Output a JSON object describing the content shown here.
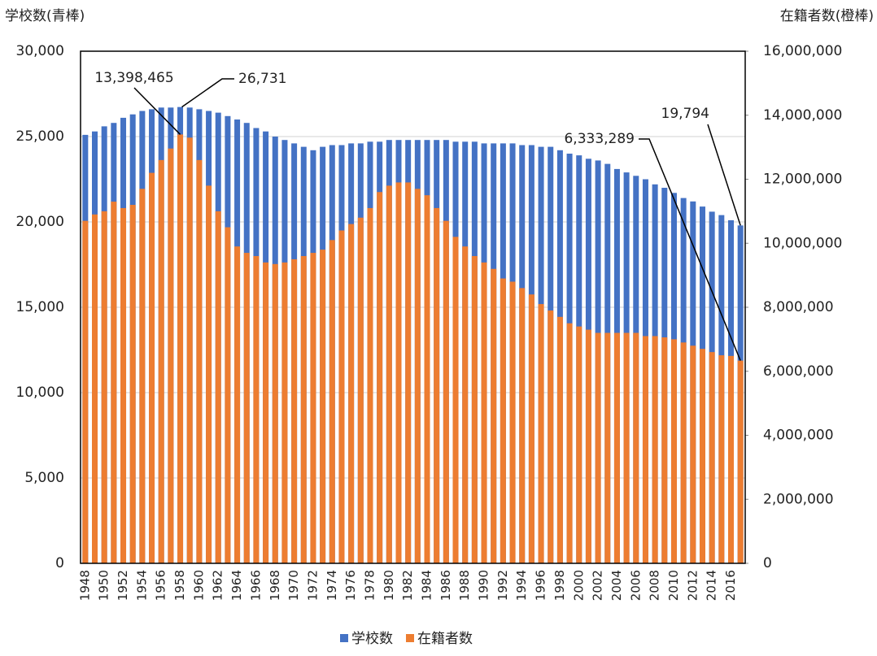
{
  "chart_data": {
    "type": "bar",
    "y_label": "学校数(青棒)",
    "y2_label": "在籍者数(橙棒)",
    "categories": [
      "1948",
      null,
      "1950",
      null,
      "1952",
      null,
      "1954",
      null,
      "1956",
      null,
      "1958",
      null,
      "1960",
      null,
      "1962",
      null,
      "1964",
      null,
      "1966",
      null,
      "1968",
      null,
      "1970",
      null,
      "1972",
      null,
      "1974",
      null,
      "1976",
      null,
      "1978",
      null,
      "1980",
      null,
      "1982",
      null,
      "1984",
      null,
      "1986",
      null,
      "1988",
      null,
      "1990",
      null,
      "1992",
      null,
      "1994",
      null,
      "1996",
      null,
      "1998",
      null,
      "2000",
      null,
      "2002",
      null,
      "2004",
      null,
      "2006",
      null,
      "2008",
      null,
      "2010",
      null,
      "2012",
      null,
      "2014",
      null,
      "2016",
      null
    ],
    "series": [
      {
        "name": "学校数",
        "color": "#4472c4",
        "values": [
          25100,
          25300,
          25600,
          25800,
          26100,
          26300,
          26500,
          26600,
          26700,
          26700,
          26731,
          26700,
          26600,
          26500,
          26400,
          26200,
          26000,
          25800,
          25500,
          25300,
          25000,
          24800,
          24600,
          24400,
          24200,
          24400,
          24500,
          24500,
          24600,
          24600,
          24700,
          24700,
          24800,
          24800,
          24800,
          24800,
          24800,
          24800,
          24800,
          24700,
          24700,
          24700,
          24600,
          24600,
          24600,
          24600,
          24500,
          24500,
          24400,
          24400,
          24200,
          24000,
          23900,
          23700,
          23600,
          23400,
          23100,
          22900,
          22700,
          22500,
          22200,
          22000,
          21700,
          21400,
          21200,
          20900,
          20600,
          20400,
          20100,
          19794
        ],
        "value_labels": [
          null,
          null,
          null,
          null,
          null,
          null,
          null,
          null,
          null,
          null,
          "26,731",
          null,
          null,
          null,
          null,
          null,
          null,
          null,
          null,
          null,
          null,
          null,
          null,
          null,
          null,
          null,
          null,
          null,
          null,
          null,
          null,
          null,
          null,
          null,
          null,
          null,
          null,
          null,
          null,
          null,
          null,
          null,
          null,
          null,
          null,
          null,
          null,
          null,
          null,
          null,
          null,
          null,
          null,
          null,
          null,
          null,
          null,
          null,
          null,
          null,
          null,
          null,
          null,
          null,
          null,
          null,
          null,
          null,
          null,
          "19,794"
        ]
      },
      {
        "name": "在籍者数",
        "color": "#ed7d31",
        "axis": "y2",
        "values": [
          10700000,
          10900000,
          11000000,
          11300000,
          11100000,
          11200000,
          11700000,
          12200000,
          12600000,
          12960000,
          13398465,
          13300000,
          12600000,
          11800000,
          11000000,
          10500000,
          9900000,
          9700000,
          9600000,
          9400000,
          9350000,
          9400000,
          9500000,
          9600000,
          9700000,
          9800000,
          10100000,
          10400000,
          10600000,
          10800000,
          11100000,
          11600000,
          11800000,
          11900000,
          11900000,
          11700000,
          11500000,
          11100000,
          10700000,
          10200000,
          9900000,
          9600000,
          9400000,
          9200000,
          8900000,
          8800000,
          8600000,
          8400000,
          8100000,
          7900000,
          7700000,
          7500000,
          7400000,
          7300000,
          7200000,
          7200000,
          7200000,
          7200000,
          7200000,
          7100000,
          7100000,
          7060000,
          7000000,
          6900000,
          6800000,
          6700000,
          6600000,
          6500000,
          6480000,
          6333289
        ],
        "value_labels": [
          null,
          null,
          null,
          null,
          null,
          null,
          null,
          null,
          null,
          null,
          "13,398,465",
          null,
          null,
          null,
          null,
          null,
          null,
          null,
          null,
          null,
          null,
          null,
          null,
          null,
          null,
          null,
          null,
          null,
          null,
          null,
          null,
          null,
          null,
          null,
          null,
          null,
          null,
          null,
          null,
          null,
          null,
          null,
          null,
          null,
          null,
          null,
          null,
          null,
          null,
          null,
          null,
          null,
          null,
          null,
          null,
          null,
          null,
          null,
          null,
          null,
          null,
          null,
          null,
          null,
          null,
          null,
          null,
          null,
          null,
          "6,333,289"
        ]
      }
    ],
    "ylim": [
      0,
      30000
    ],
    "yticks": [
      0,
      {
        "value": 5000,
        "label": "5,000"
      },
      {
        "value": 10000,
        "label": "10,000"
      },
      {
        "value": 15000,
        "label": "15,000"
      },
      {
        "value": 20000,
        "label": "20,000"
      },
      {
        "value": 25000,
        "label": "25,000"
      },
      {
        "value": 30000,
        "label": "30,000"
      }
    ],
    "y2lim": [
      0,
      16000000
    ],
    "y2ticks": [
      0,
      {
        "value": 2000000,
        "label": "2,000,000"
      },
      {
        "value": 4000000,
        "label": "4,000,000"
      },
      {
        "value": 6000000,
        "label": "6,000,000"
      },
      {
        "value": 8000000,
        "label": "8,000,000"
      },
      {
        "value": 10000000,
        "label": "10,000,000"
      },
      {
        "value": 12000000,
        "label": "12,000,000"
      },
      {
        "value": 14000000,
        "label": "14,000,000"
      },
      {
        "value": 16000000,
        "label": "16,000,000"
      }
    ],
    "grid": true,
    "legend": "bottom"
  }
}
